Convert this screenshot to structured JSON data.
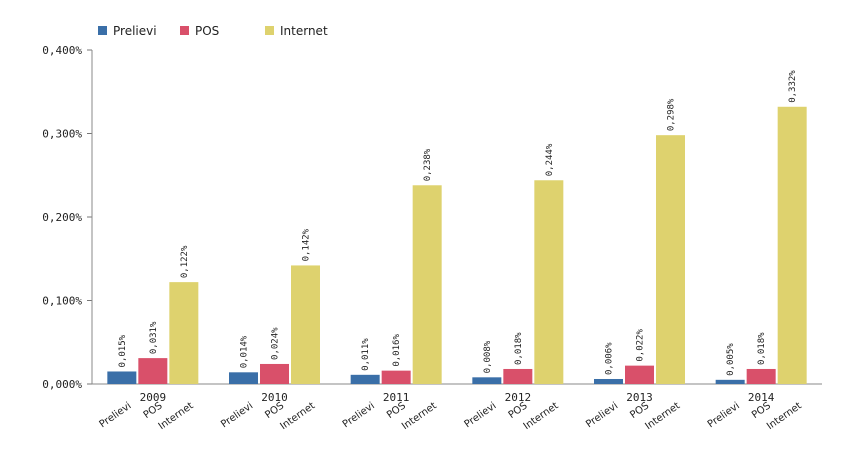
{
  "chart_data": {
    "type": "bar",
    "title": "",
    "xlabel": "",
    "ylabel": "",
    "legend_position": "top-left",
    "ylim": [
      0,
      0.4
    ],
    "yticks": [
      "0,000%",
      "0,100%",
      "0,200%",
      "0,300%",
      "0,400%"
    ],
    "ytick_values": [
      0,
      0.1,
      0.2,
      0.3,
      0.4
    ],
    "categories": [
      "2009",
      "2010",
      "2011",
      "2012",
      "2013",
      "2014"
    ],
    "series": [
      {
        "name": "Prelievi",
        "color": "#3a6fa8",
        "values": [
          0.015,
          0.014,
          0.011,
          0.008,
          0.006,
          0.005
        ],
        "labels": [
          "0,015%",
          "0,014%",
          "0,011%",
          "0,008%",
          "0,006%",
          "0,005%"
        ]
      },
      {
        "name": "POS",
        "color": "#d9506a",
        "values": [
          0.031,
          0.024,
          0.016,
          0.018,
          0.022,
          0.018
        ],
        "labels": [
          "0,031%",
          "0,024%",
          "0,016%",
          "0,018%",
          "0,022%",
          "0,018%"
        ]
      },
      {
        "name": "Internet",
        "color": "#ded26e",
        "values": [
          0.122,
          0.142,
          0.238,
          0.244,
          0.298,
          0.332
        ],
        "labels": [
          "0,122%",
          "0,142%",
          "0,238%",
          "0,244%",
          "0,298%",
          "0,332%"
        ]
      }
    ]
  }
}
